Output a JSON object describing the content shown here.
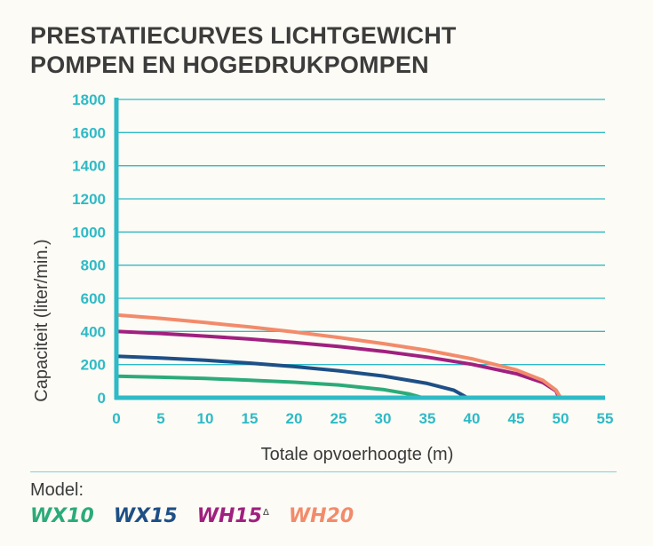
{
  "header": {
    "title_line1": "PRESTATIECURVES LICHTGEWICHT",
    "title_line2": "POMPEN EN HOGEDRUKPOMPEN"
  },
  "legend": {
    "label": "Model:",
    "items": [
      {
        "name": "WX10",
        "color": "#2bab79",
        "sup": ""
      },
      {
        "name": "WX15",
        "color": "#1e4f86",
        "sup": ""
      },
      {
        "name": "WH15",
        "color": "#a0207f",
        "sup": "Δ"
      },
      {
        "name": "WH20",
        "color": "#f28b6b",
        "sup": ""
      }
    ]
  },
  "colors": {
    "axis": "#2ebac6",
    "tick_text": "#2ebac6",
    "text": "#3a3a3a"
  },
  "chart_data": {
    "type": "line",
    "title": "",
    "xlabel": "Totale opvoerhoogte (m)",
    "ylabel": "Capaciteit (liter/min.)",
    "xlim": [
      0,
      55
    ],
    "ylim": [
      0,
      1800
    ],
    "xticks": [
      0,
      5,
      10,
      15,
      20,
      25,
      30,
      35,
      40,
      45,
      50,
      55
    ],
    "yticks": [
      0,
      200,
      400,
      600,
      800,
      1000,
      1200,
      1400,
      1600,
      1800
    ],
    "grid": true,
    "series": [
      {
        "name": "WX10",
        "color": "#2bab79",
        "x": [
          0,
          5,
          10,
          15,
          20,
          25,
          30,
          33,
          34.5
        ],
        "y": [
          130,
          124,
          116,
          106,
          94,
          77,
          50,
          22,
          0
        ]
      },
      {
        "name": "WX15",
        "color": "#1e4f86",
        "x": [
          0,
          5,
          10,
          15,
          20,
          25,
          30,
          35,
          38,
          39.5
        ],
        "y": [
          250,
          240,
          226,
          209,
          188,
          163,
          131,
          86,
          45,
          0
        ]
      },
      {
        "name": "WH15",
        "color": "#a0207f",
        "x": [
          0,
          5,
          10,
          15,
          20,
          25,
          30,
          35,
          40,
          45,
          48,
          49.5,
          49.8
        ],
        "y": [
          400,
          388,
          372,
          354,
          333,
          309,
          280,
          245,
          202,
          145,
          92,
          40,
          0
        ]
      },
      {
        "name": "WH20",
        "color": "#f28b6b",
        "x": [
          0,
          5,
          10,
          15,
          20,
          25,
          30,
          35,
          40,
          45,
          48,
          49.5,
          50
        ],
        "y": [
          500,
          479,
          454,
          427,
          397,
          364,
          327,
          286,
          235,
          168,
          105,
          45,
          0
        ]
      }
    ]
  }
}
